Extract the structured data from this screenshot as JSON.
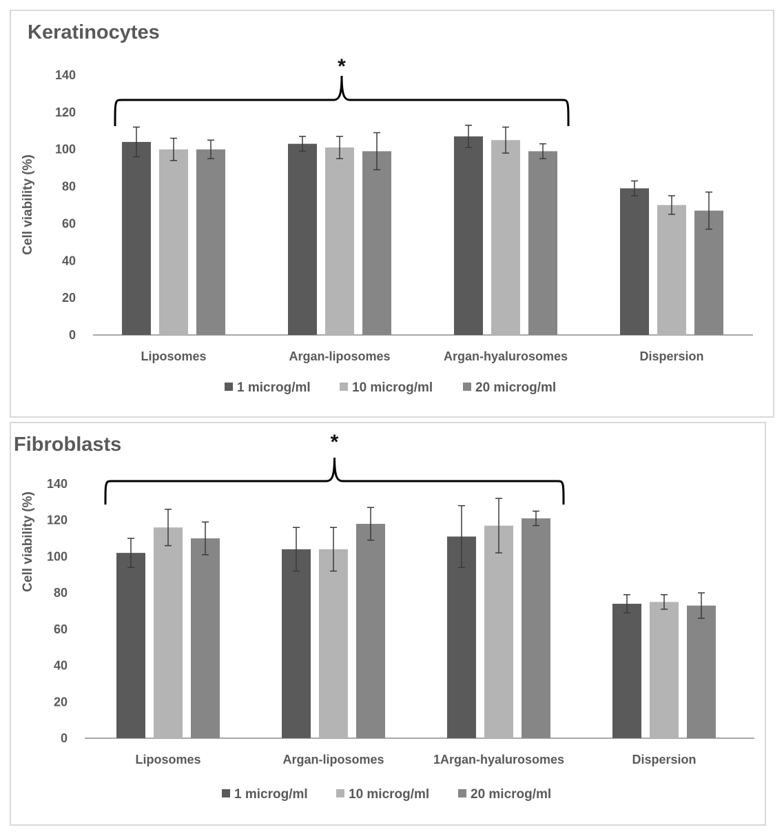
{
  "chart_data": [
    {
      "type": "bar",
      "title": "Keratinocytes",
      "ylabel": "Cell viability (%)",
      "xlabel": "",
      "ylim": [
        0,
        140
      ],
      "yticks": [
        "0",
        "20",
        "40",
        "60",
        "80",
        "100",
        "120",
        "140"
      ],
      "categories": [
        "Liposomes",
        "Argan-liposomes",
        "Argan-hyalurosomes",
        "Dispersion"
      ],
      "series": [
        {
          "name": "1 microg/ml",
          "color": "#5a5a5a",
          "values": [
            104,
            103,
            107,
            79
          ],
          "errors": [
            8,
            4,
            6,
            4
          ]
        },
        {
          "name": "10 microg/ml",
          "color": "#b4b4b4",
          "values": [
            100,
            101,
            105,
            70
          ],
          "errors": [
            6,
            6,
            7,
            5
          ]
        },
        {
          "name": "20 microg/ml",
          "color": "#868686",
          "values": [
            100,
            99,
            99,
            67
          ],
          "errors": [
            5,
            10,
            4,
            10
          ]
        }
      ],
      "annotation": "*",
      "bracket_categories": [
        0,
        2
      ]
    },
    {
      "type": "bar",
      "title": "Fibroblasts",
      "ylabel": "Cell viability (%)",
      "xlabel": "",
      "ylim": [
        0,
        140
      ],
      "yticks": [
        "0",
        "20",
        "40",
        "60",
        "80",
        "100",
        "120",
        "140"
      ],
      "categories": [
        "Liposomes",
        "Argan-liposomes",
        "1Argan-hyalurosomes",
        "Dispersion"
      ],
      "series": [
        {
          "name": "1 microg/ml",
          "color": "#5a5a5a",
          "values": [
            102,
            104,
            111,
            74
          ],
          "errors": [
            8,
            12,
            17,
            5
          ]
        },
        {
          "name": "10 microg/ml",
          "color": "#b4b4b4",
          "values": [
            116,
            104,
            117,
            75
          ],
          "errors": [
            10,
            12,
            15,
            4
          ]
        },
        {
          "name": "20 microg/ml",
          "color": "#868686",
          "values": [
            110,
            118,
            121,
            73
          ],
          "errors": [
            9,
            9,
            4,
            7
          ]
        }
      ],
      "annotation": "*",
      "bracket_categories": [
        0,
        2
      ]
    }
  ]
}
